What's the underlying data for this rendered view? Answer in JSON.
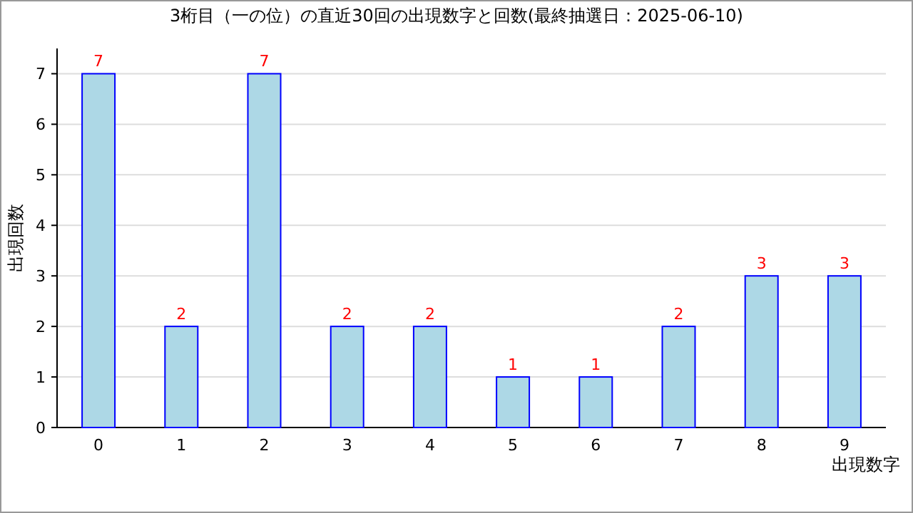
{
  "chart_data": {
    "type": "bar",
    "title": "3桁目（一の位）の直近30回の出現数字と回数(最終抽選日：2025-06-10)",
    "xlabel": "出現数字",
    "ylabel": "出現回数",
    "categories": [
      "0",
      "1",
      "2",
      "3",
      "4",
      "5",
      "6",
      "7",
      "8",
      "9"
    ],
    "values": [
      7,
      2,
      7,
      2,
      2,
      1,
      1,
      2,
      3,
      3
    ],
    "color": "#add8e6",
    "ylim": [
      0,
      7.5
    ],
    "yticks": [
      0,
      1,
      2,
      3,
      4,
      5,
      6,
      7
    ],
    "grid": "y",
    "data_labels": true
  }
}
